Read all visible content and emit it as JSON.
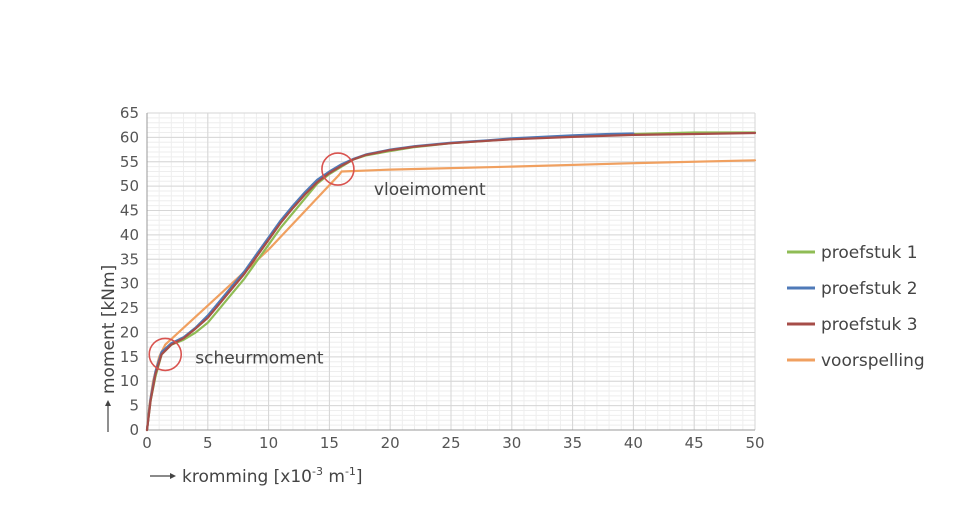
{
  "chart_data": {
    "type": "line",
    "xlabel": "kromming [x10",
    "xlabel_exp1": "-3",
    "xlabel_unit": " m",
    "xlabel_exp2": "-1",
    "xlabel_end": "]",
    "ylabel": "moment [kNm]",
    "xlim": [
      0,
      50
    ],
    "ylim": [
      0,
      65
    ],
    "xticks": [
      0,
      5,
      10,
      15,
      20,
      25,
      30,
      35,
      40,
      45,
      50
    ],
    "yticks": [
      0,
      5,
      10,
      15,
      20,
      25,
      30,
      35,
      40,
      45,
      50,
      55,
      60,
      65
    ],
    "grid": true,
    "legend_position": "right",
    "series": [
      {
        "name": "proefstuk 1",
        "color": "#8fbc55",
        "points": [
          [
            0,
            0
          ],
          [
            0.3,
            6
          ],
          [
            0.7,
            11
          ],
          [
            1.2,
            15.5
          ],
          [
            2,
            17.5
          ],
          [
            3,
            18.5
          ],
          [
            4,
            20
          ],
          [
            5,
            22
          ],
          [
            6,
            25
          ],
          [
            7,
            28
          ],
          [
            8,
            31
          ],
          [
            9,
            34.5
          ],
          [
            10,
            38
          ],
          [
            11,
            41.5
          ],
          [
            12,
            44.5
          ],
          [
            13,
            47.5
          ],
          [
            14,
            50.5
          ],
          [
            15,
            52.5
          ],
          [
            16,
            54
          ],
          [
            17,
            55.5
          ],
          [
            18,
            56.3
          ],
          [
            20,
            57.2
          ],
          [
            22,
            58
          ],
          [
            25,
            58.8
          ],
          [
            28,
            59.3
          ],
          [
            30,
            59.7
          ],
          [
            35,
            60.3
          ],
          [
            40,
            60.7
          ],
          [
            45,
            61
          ],
          [
            50,
            61
          ]
        ]
      },
      {
        "name": "proefstuk 2",
        "color": "#4f7ab8",
        "points": [
          [
            0,
            0
          ],
          [
            0.3,
            6.5
          ],
          [
            0.7,
            12
          ],
          [
            1.2,
            16
          ],
          [
            2,
            17.8
          ],
          [
            3,
            19
          ],
          [
            4,
            21
          ],
          [
            5,
            23.5
          ],
          [
            6,
            26.5
          ],
          [
            7,
            29.5
          ],
          [
            8,
            32.5
          ],
          [
            9,
            36
          ],
          [
            10,
            39.5
          ],
          [
            11,
            43
          ],
          [
            12,
            46
          ],
          [
            13,
            48.8
          ],
          [
            14,
            51.3
          ],
          [
            15,
            53
          ],
          [
            16,
            54.5
          ],
          [
            17,
            55.6
          ],
          [
            18,
            56.5
          ],
          [
            20,
            57.5
          ],
          [
            22,
            58.2
          ],
          [
            25,
            58.9
          ],
          [
            28,
            59.4
          ],
          [
            30,
            59.8
          ],
          [
            35,
            60.4
          ],
          [
            38,
            60.7
          ],
          [
            40,
            60.8
          ]
        ]
      },
      {
        "name": "proefstuk 3",
        "color": "#a64d48",
        "points": [
          [
            0,
            0
          ],
          [
            0.3,
            6
          ],
          [
            0.7,
            11.5
          ],
          [
            1.2,
            15.5
          ],
          [
            2,
            17.5
          ],
          [
            3,
            18.8
          ],
          [
            4,
            20.8
          ],
          [
            5,
            23
          ],
          [
            6,
            26
          ],
          [
            7,
            29
          ],
          [
            8,
            32
          ],
          [
            9,
            35.5
          ],
          [
            10,
            39
          ],
          [
            11,
            42.5
          ],
          [
            12,
            45.5
          ],
          [
            13,
            48.3
          ],
          [
            14,
            50.8
          ],
          [
            15,
            52.7
          ],
          [
            16,
            54.2
          ],
          [
            17,
            55.5
          ],
          [
            18,
            56.4
          ],
          [
            20,
            57.4
          ],
          [
            22,
            58.1
          ],
          [
            25,
            58.8
          ],
          [
            28,
            59.3
          ],
          [
            30,
            59.6
          ],
          [
            35,
            60.1
          ],
          [
            40,
            60.5
          ],
          [
            45,
            60.7
          ],
          [
            50,
            60.9
          ]
        ]
      },
      {
        "name": "voorspelling",
        "color": "#f0a060",
        "points": [
          [
            0,
            0
          ],
          [
            0.2,
            5
          ],
          [
            0.5,
            10
          ],
          [
            1,
            15
          ],
          [
            1.5,
            17.5
          ],
          [
            5,
            25.5
          ],
          [
            10,
            37
          ],
          [
            15.8,
            52.3
          ],
          [
            16,
            53
          ],
          [
            20,
            53.4
          ],
          [
            30,
            54
          ],
          [
            40,
            54.7
          ],
          [
            50,
            55.3
          ]
        ]
      }
    ],
    "annotations": [
      {
        "text": "scheurmoment",
        "x": 1.5,
        "y": 15.5
      },
      {
        "text": "vloeimoment",
        "x": 15.7,
        "y": 53.5
      }
    ],
    "annotation_circle_color": "#d9534f"
  }
}
